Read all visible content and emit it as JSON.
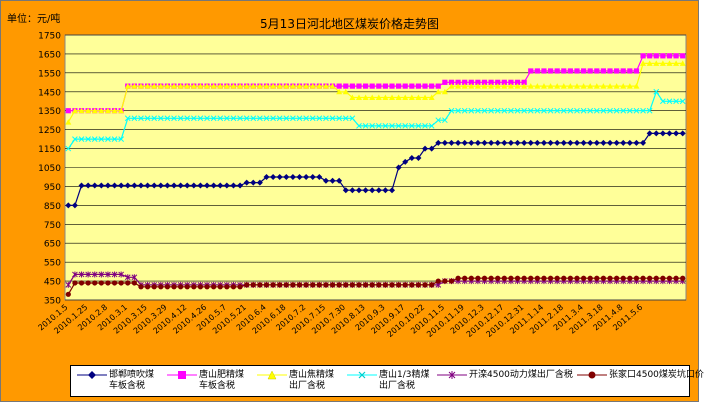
{
  "header": {
    "unit_label": "单位：元/吨",
    "title": "5月13日河北地区煤炭价格走势图"
  },
  "chart_data": {
    "type": "line",
    "title": "5月13日河北地区煤炭价格走势图",
    "ylabel": "单位：元/吨",
    "xlabel": "",
    "ylim": [
      350,
      1750
    ],
    "yticks": [
      350,
      450,
      550,
      650,
      750,
      850,
      950,
      1050,
      1150,
      1250,
      1350,
      1450,
      1550,
      1650,
      1750
    ],
    "grid": true,
    "legend_position": "bottom",
    "x_count": 94,
    "x_tick_labels": [
      {
        "i": 0,
        "label": "2010.1.5"
      },
      {
        "i": 3,
        "label": "2010.1.25"
      },
      {
        "i": 6,
        "label": "2010.2.8"
      },
      {
        "i": 9,
        "label": "2010.3.1"
      },
      {
        "i": 12,
        "label": "2010.3.15"
      },
      {
        "i": 15,
        "label": "2010.3.29"
      },
      {
        "i": 18,
        "label": "2010.4.12"
      },
      {
        "i": 21,
        "label": "2010.4.26"
      },
      {
        "i": 24,
        "label": "2010.5.7"
      },
      {
        "i": 27,
        "label": "2010.5.21"
      },
      {
        "i": 30,
        "label": "2010.6.4"
      },
      {
        "i": 33,
        "label": "2010.6.18"
      },
      {
        "i": 36,
        "label": "2010.7.2"
      },
      {
        "i": 39,
        "label": "2010.7.15"
      },
      {
        "i": 42,
        "label": "2010.7.30"
      },
      {
        "i": 45,
        "label": "2010.8.13"
      },
      {
        "i": 48,
        "label": "2010.9.3"
      },
      {
        "i": 51,
        "label": "2010.9.17"
      },
      {
        "i": 54,
        "label": "2010.10.22"
      },
      {
        "i": 57,
        "label": "2010.11.5"
      },
      {
        "i": 60,
        "label": "2010.11.19"
      },
      {
        "i": 63,
        "label": "2010.12.3"
      },
      {
        "i": 66,
        "label": "2010.12.17"
      },
      {
        "i": 69,
        "label": "2010.12.31"
      },
      {
        "i": 72,
        "label": "2011.1.14"
      },
      {
        "i": 75,
        "label": "2011.2.18"
      },
      {
        "i": 78,
        "label": "2011.3.4"
      },
      {
        "i": 81,
        "label": "2011.3.18"
      },
      {
        "i": 84,
        "label": "2011.4.8"
      },
      {
        "i": 87,
        "label": "2011.5.6"
      }
    ],
    "series": [
      {
        "name": "邯郸喷吹煤车板含税",
        "color": "#000080",
        "marker": "diamond",
        "segments": [
          [
            0,
            1,
            850
          ],
          [
            2,
            26,
            955
          ],
          [
            27,
            29,
            970
          ],
          [
            30,
            38,
            1000
          ],
          [
            39,
            41,
            980
          ],
          [
            42,
            49,
            930
          ],
          [
            50,
            50,
            1050
          ],
          [
            51,
            51,
            1080
          ],
          [
            52,
            53,
            1100
          ],
          [
            54,
            55,
            1150
          ],
          [
            56,
            87,
            1180
          ],
          [
            88,
            93,
            1230
          ]
        ]
      },
      {
        "name": "唐山肥精煤车板含税",
        "color": "#ff00ff",
        "marker": "square",
        "segments": [
          [
            0,
            8,
            1350
          ],
          [
            9,
            42,
            1480
          ],
          [
            43,
            56,
            1480
          ],
          [
            57,
            69,
            1500
          ],
          [
            70,
            86,
            1560
          ],
          [
            87,
            93,
            1640
          ]
        ]
      },
      {
        "name": "唐山焦精煤出厂含税",
        "color": "#ffff00",
        "marker": "triangle",
        "segments": [
          [
            0,
            0,
            1290
          ],
          [
            1,
            8,
            1350
          ],
          [
            9,
            40,
            1480
          ],
          [
            41,
            42,
            1450
          ],
          [
            43,
            55,
            1420
          ],
          [
            56,
            57,
            1450
          ],
          [
            58,
            86,
            1480
          ],
          [
            87,
            93,
            1600
          ]
        ]
      },
      {
        "name": "唐山1/3精煤出厂含税",
        "color": "#00ffff",
        "marker": "x",
        "segments": [
          [
            0,
            0,
            1150
          ],
          [
            1,
            8,
            1200
          ],
          [
            9,
            43,
            1310
          ],
          [
            44,
            55,
            1270
          ],
          [
            56,
            57,
            1300
          ],
          [
            58,
            88,
            1350
          ],
          [
            89,
            89,
            1450
          ],
          [
            90,
            91,
            1400
          ],
          [
            92,
            93,
            1400
          ]
        ]
      },
      {
        "name": "开滦4500动力煤出厂含税",
        "color": "#800080",
        "marker": "star",
        "segments": [
          [
            0,
            0,
            430
          ],
          [
            1,
            8,
            485
          ],
          [
            9,
            10,
            470
          ],
          [
            11,
            26,
            430
          ],
          [
            27,
            56,
            430
          ],
          [
            57,
            93,
            450
          ]
        ]
      },
      {
        "name": "张家口4500煤炭坑口价",
        "color": "#800000",
        "marker": "circle",
        "segments": [
          [
            0,
            0,
            380
          ],
          [
            1,
            10,
            440
          ],
          [
            11,
            26,
            420
          ],
          [
            27,
            55,
            430
          ],
          [
            56,
            58,
            450
          ],
          [
            59,
            93,
            465
          ]
        ]
      }
    ]
  },
  "legend": {
    "items": [
      {
        "line1": "邯郸喷吹煤",
        "line2": "车板含税"
      },
      {
        "line1": "唐山肥精煤",
        "line2": "车板含税"
      },
      {
        "line1": "唐山焦精煤",
        "line2": "出厂含税"
      },
      {
        "line1": "唐山1/3精煤",
        "line2": "出厂含税"
      },
      {
        "line1": "开滦4500动力煤出厂含税",
        "line2": ""
      },
      {
        "line1": "张家口4500煤炭坑口价",
        "line2": ""
      }
    ]
  },
  "colors": {
    "frame_bg": "#ff9900",
    "plot_bg": "#ffff99",
    "grid": "#000000"
  }
}
